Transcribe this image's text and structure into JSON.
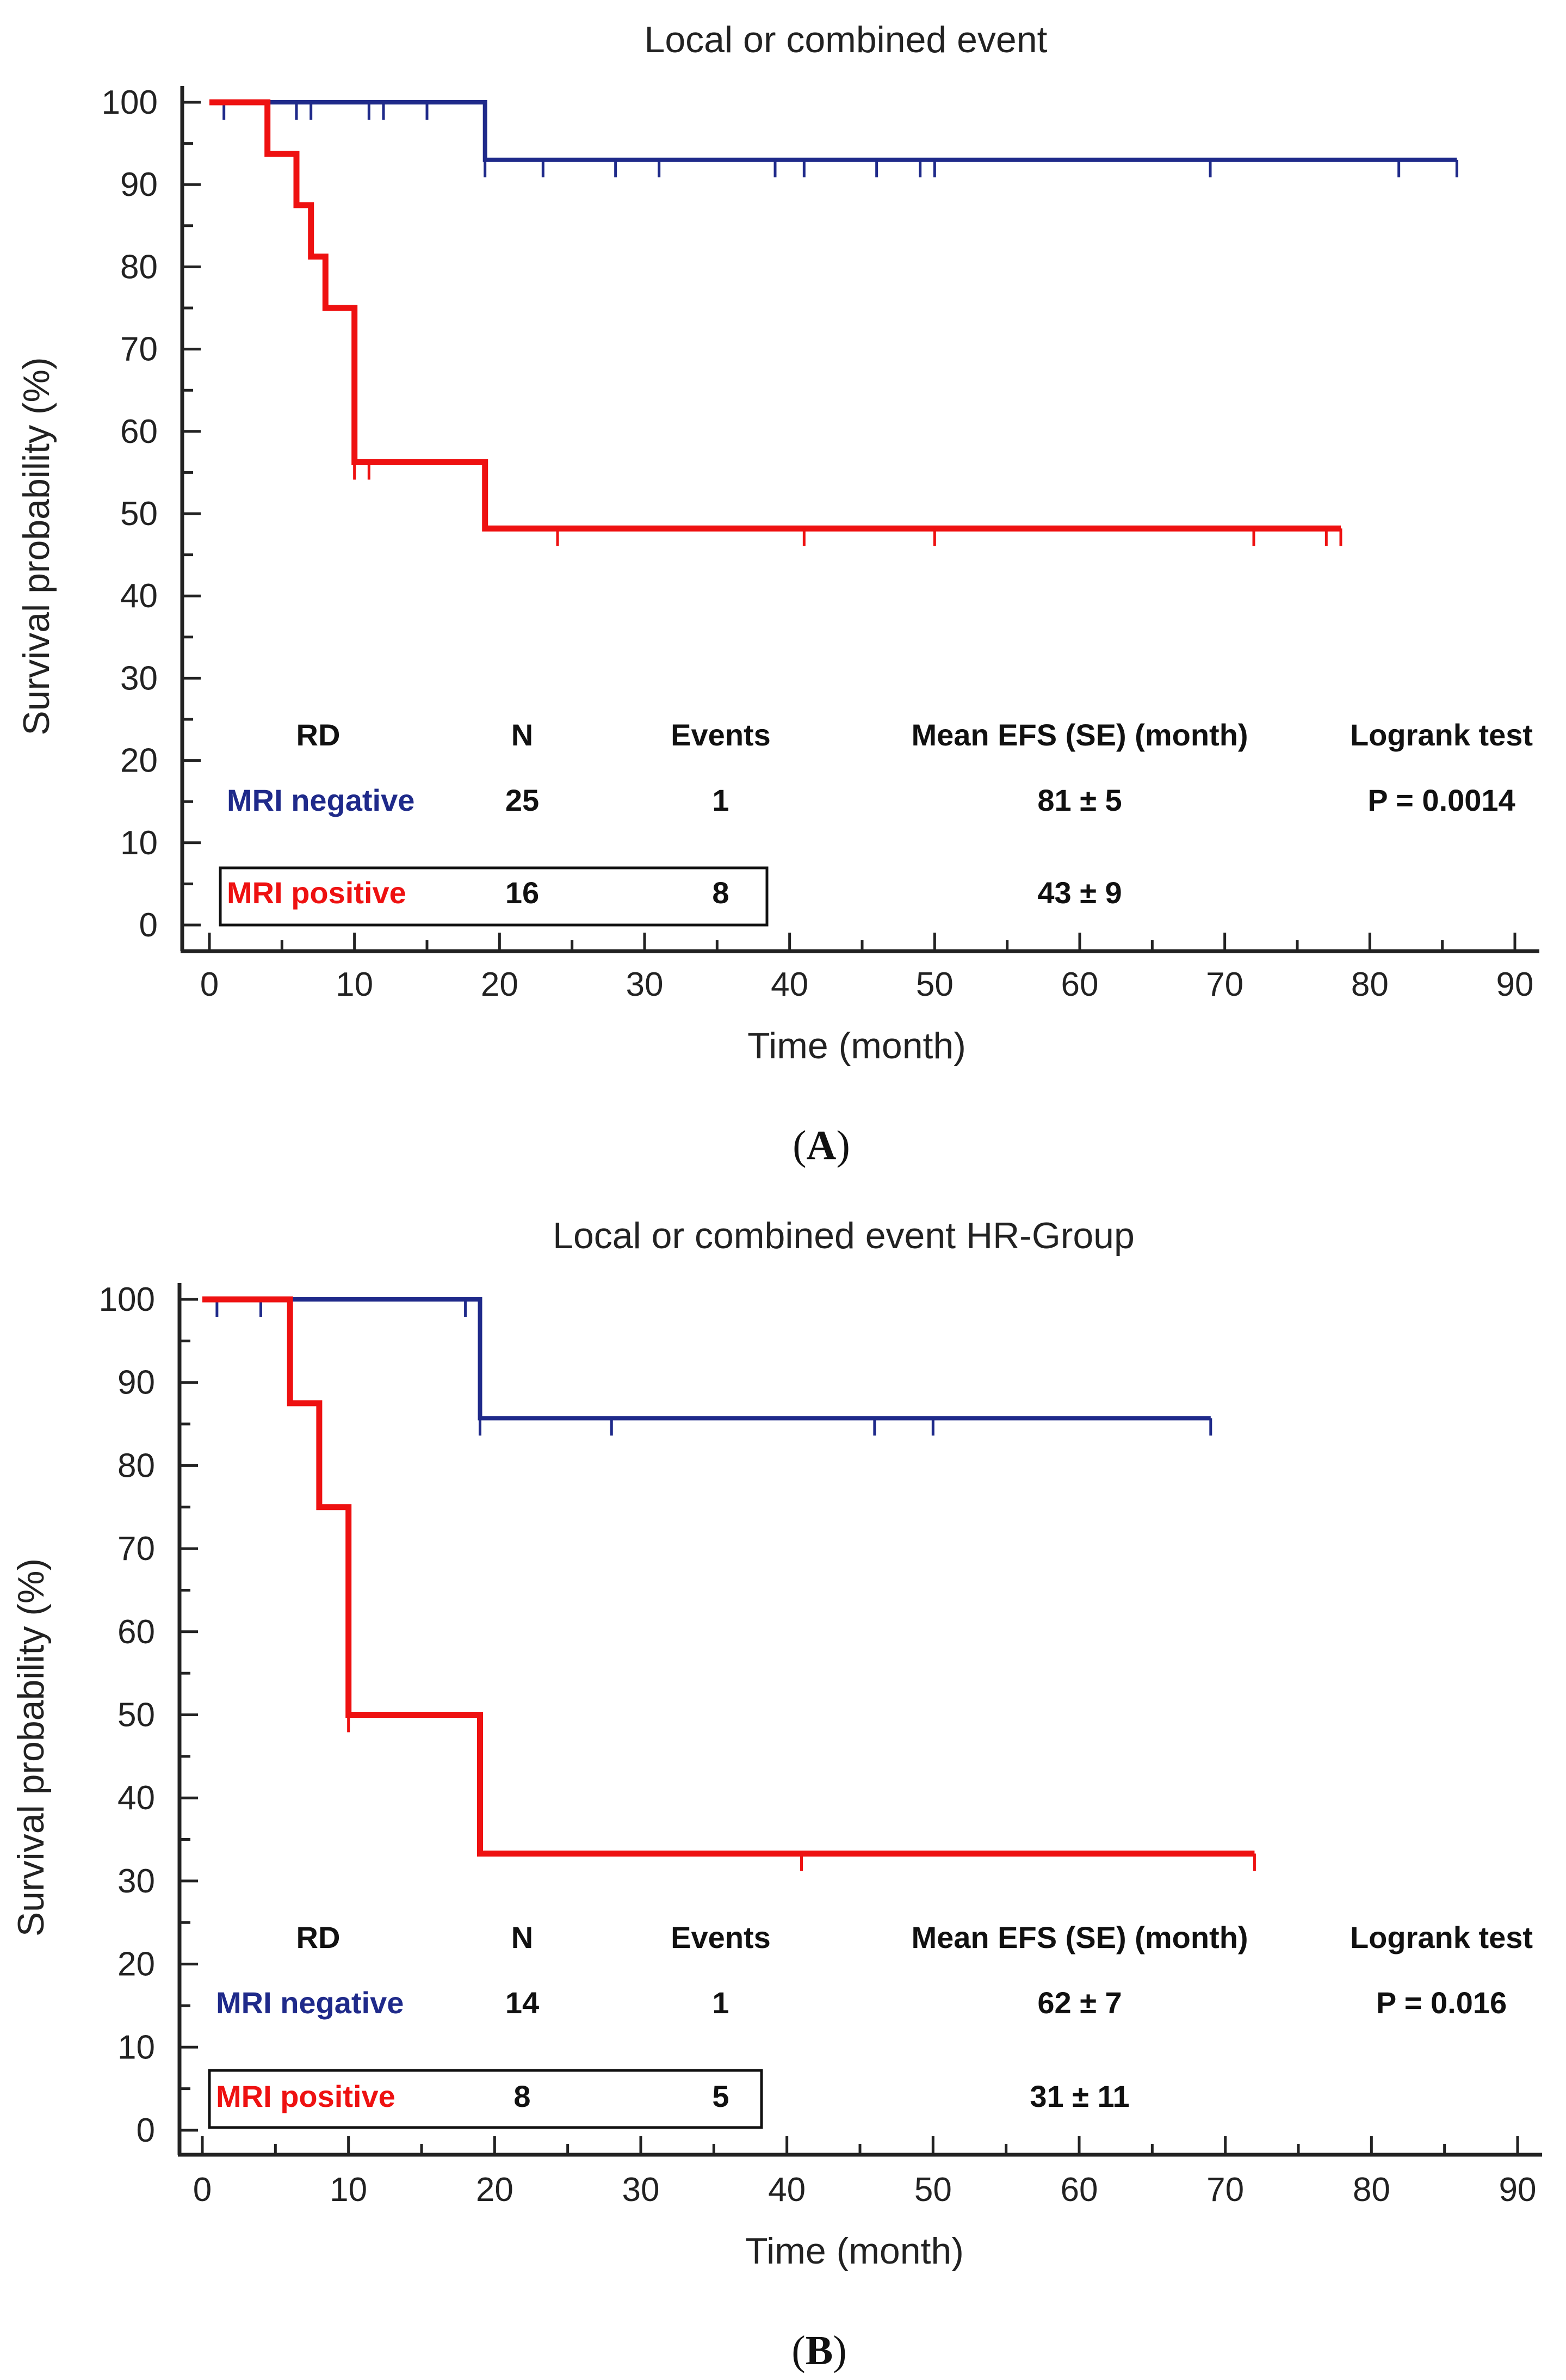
{
  "colors": {
    "negative": "#1f2a8a",
    "positive": "#ee1111",
    "axis": "#222222"
  },
  "chart_data": [
    {
      "type": "line",
      "panel_label_open": "(",
      "panel_label": "A",
      "panel_label_close": ")",
      "title": "Local or combined event",
      "xlabel": "Time (month)",
      "ylabel": "Survival probability (%)",
      "xlim": [
        0,
        90
      ],
      "ylim": [
        0,
        100
      ],
      "xticks": [
        0,
        10,
        20,
        30,
        40,
        50,
        60,
        70,
        80,
        90
      ],
      "yticks": [
        0,
        10,
        20,
        30,
        40,
        50,
        60,
        70,
        80,
        90,
        100
      ],
      "series": [
        {
          "name": "MRI negative",
          "key": "negative",
          "steps": [
            [
              0,
              100
            ],
            [
              19,
              100
            ],
            [
              19,
              93
            ],
            [
              86,
              93
            ]
          ],
          "censored": [
            [
              1,
              100
            ],
            [
              6,
              100
            ],
            [
              7,
              100
            ],
            [
              11,
              100
            ],
            [
              12,
              100
            ],
            [
              15,
              100
            ],
            [
              19,
              93
            ],
            [
              23,
              93
            ],
            [
              28,
              93
            ],
            [
              31,
              93
            ],
            [
              39,
              93
            ],
            [
              41,
              93
            ],
            [
              46,
              93
            ],
            [
              49,
              93
            ],
            [
              50,
              93
            ],
            [
              69,
              93
            ],
            [
              82,
              93
            ],
            [
              86,
              93
            ]
          ]
        },
        {
          "name": "MRI positive",
          "key": "positive",
          "steps": [
            [
              0,
              100
            ],
            [
              4,
              100
            ],
            [
              4,
              93.75
            ],
            [
              6,
              93.75
            ],
            [
              6,
              87.5
            ],
            [
              7,
              87.5
            ],
            [
              7,
              81.25
            ],
            [
              8,
              81.25
            ],
            [
              8,
              75
            ],
            [
              10,
              75
            ],
            [
              10,
              56.25
            ],
            [
              19,
              56.25
            ],
            [
              19,
              48.2
            ],
            [
              78,
              48.2
            ]
          ],
          "censored": [
            [
              10,
              56.25
            ],
            [
              11,
              56.25
            ],
            [
              24,
              48.2
            ],
            [
              41,
              48.2
            ],
            [
              50,
              48.2
            ],
            [
              72,
              48.2
            ],
            [
              77,
              48.2
            ],
            [
              78,
              48.2
            ]
          ]
        }
      ],
      "stats": {
        "headers": [
          "RD",
          "N",
          "Events",
          "Mean EFS (SE) (month)",
          "Logrank test"
        ],
        "rows": [
          {
            "key": "negative",
            "label": "MRI negative",
            "n": "25",
            "events": "1",
            "mean": "81 ± 5",
            "p": "P = 0.0014"
          },
          {
            "key": "positive",
            "label": "MRI positive",
            "n": "16",
            "events": "8",
            "mean": "43 ± 9",
            "p": ""
          }
        ]
      }
    },
    {
      "type": "line",
      "panel_label_open": "(",
      "panel_label": "B",
      "panel_label_close": ")",
      "title": "Local or combined event HR-Group",
      "xlabel": "Time (month)",
      "ylabel": "Survival probability (%)",
      "xlim": [
        0,
        90
      ],
      "ylim": [
        0,
        100
      ],
      "xticks": [
        0,
        10,
        20,
        30,
        40,
        50,
        60,
        70,
        80,
        90
      ],
      "yticks": [
        0,
        10,
        20,
        30,
        40,
        50,
        60,
        70,
        80,
        90,
        100
      ],
      "series": [
        {
          "name": "MRI negative",
          "key": "negative",
          "steps": [
            [
              0,
              100
            ],
            [
              19,
              100
            ],
            [
              19,
              85.7
            ],
            [
              69,
              85.7
            ]
          ],
          "censored": [
            [
              1,
              100
            ],
            [
              4,
              100
            ],
            [
              6,
              100
            ],
            [
              18,
              100
            ],
            [
              19,
              85.7
            ],
            [
              28,
              85.7
            ],
            [
              46,
              85.7
            ],
            [
              50,
              85.7
            ],
            [
              69,
              85.7
            ]
          ]
        },
        {
          "name": "MRI positive",
          "key": "positive",
          "steps": [
            [
              0,
              100
            ],
            [
              6,
              100
            ],
            [
              6,
              87.5
            ],
            [
              8,
              87.5
            ],
            [
              8,
              75
            ],
            [
              10,
              75
            ],
            [
              10,
              50
            ],
            [
              19,
              50
            ],
            [
              19,
              33.3
            ],
            [
              72,
              33.3
            ]
          ],
          "censored": [
            [
              10,
              50
            ],
            [
              41,
              33.3
            ],
            [
              72,
              33.3
            ]
          ]
        }
      ],
      "stats": {
        "headers": [
          "RD",
          "N",
          "Events",
          "Mean EFS (SE) (month)",
          "Logrank test"
        ],
        "rows": [
          {
            "key": "negative",
            "label": "MRI negative",
            "n": "14",
            "events": "1",
            "mean": "62 ± 7",
            "p": "P = 0.016"
          },
          {
            "key": "positive",
            "label": "MRI positive",
            "n": "8",
            "events": "5",
            "mean": "31 ± 11",
            "p": ""
          }
        ]
      }
    }
  ]
}
